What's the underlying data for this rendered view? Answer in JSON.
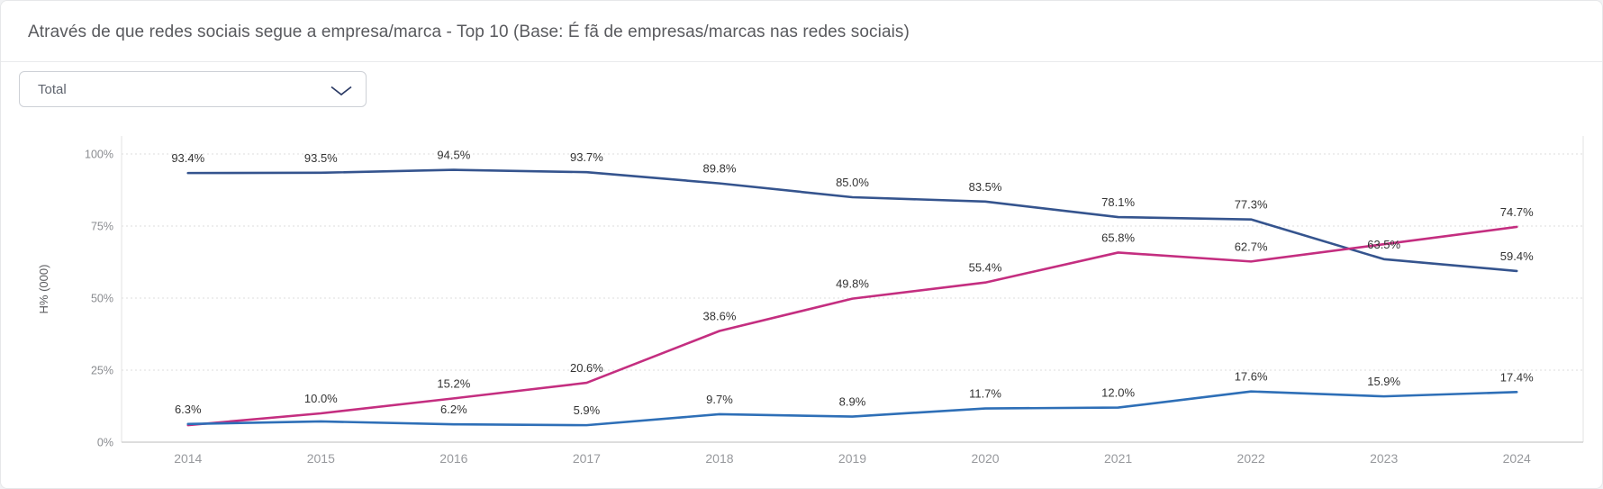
{
  "header": {
    "title": "Através de que redes sociais segue a empresa/marca - Top 10 (Base: É fã de empresas/marcas nas redes sociais)"
  },
  "filter": {
    "selected": "Total",
    "chevron_icon": "chevron-down"
  },
  "colors": {
    "navy_line": "#35548e",
    "pink_line": "#c42e80",
    "blue_line": "#2e6fb7",
    "grid_line": "#dcdcdc",
    "axis_line": "#d2d2d2",
    "plot_border": "#e3e3e3",
    "tick_text": "#8a8c90",
    "year_text": "#97999d",
    "data_label_text": "#333333",
    "axis_title_text": "#5c5d60"
  },
  "chart_data": {
    "type": "line",
    "title": "Através de que redes sociais segue a empresa/marca - Top 10 (Base: É fã de empresas/marcas nas redes sociais)",
    "categories": [
      "2014",
      "2015",
      "2016",
      "2017",
      "2018",
      "2019",
      "2020",
      "2021",
      "2022",
      "2023",
      "2024"
    ],
    "xlabel": "",
    "ylabel": "H% (000)",
    "ylim": [
      0,
      100
    ],
    "yticks": [
      {
        "value": 0,
        "label": "0%"
      },
      {
        "value": 25,
        "label": "25%"
      },
      {
        "value": 50,
        "label": "50%"
      },
      {
        "value": 75,
        "label": "75%"
      },
      {
        "value": 100,
        "label": "100%"
      }
    ],
    "grid": "horizontal-dotted",
    "legend": "none",
    "series": [
      {
        "id": "series-navy",
        "color": "#35548e",
        "values": [
          93.4,
          93.5,
          94.5,
          93.7,
          89.8,
          85.0,
          83.5,
          78.1,
          77.3,
          63.5,
          59.4
        ],
        "point_labels": [
          "93.4%",
          "93.5%",
          "94.5%",
          "93.7%",
          "89.8%",
          "85.0%",
          "83.5%",
          "78.1%",
          "77.3%",
          "63.5%",
          "59.4%"
        ]
      },
      {
        "id": "series-pink",
        "color": "#c42e80",
        "values": [
          5.9,
          10.0,
          15.2,
          20.6,
          38.6,
          49.8,
          55.4,
          65.8,
          62.7,
          68.7,
          74.7
        ],
        "point_labels": [
          null,
          "10.0%",
          "15.2%",
          "20.6%",
          "38.6%",
          "49.8%",
          "55.4%",
          "65.8%",
          "62.7%",
          null,
          "74.7%"
        ]
      },
      {
        "id": "series-light-blue",
        "color": "#2e6fb7",
        "values": [
          6.3,
          7.2,
          6.2,
          5.9,
          9.7,
          8.9,
          11.7,
          12.0,
          17.6,
          15.9,
          17.4
        ],
        "point_labels": [
          "6.3%",
          null,
          "6.2%",
          "5.9%",
          "9.7%",
          "8.9%",
          "11.7%",
          "12.0%",
          "17.6%",
          "15.9%",
          "17.4%"
        ]
      }
    ]
  }
}
